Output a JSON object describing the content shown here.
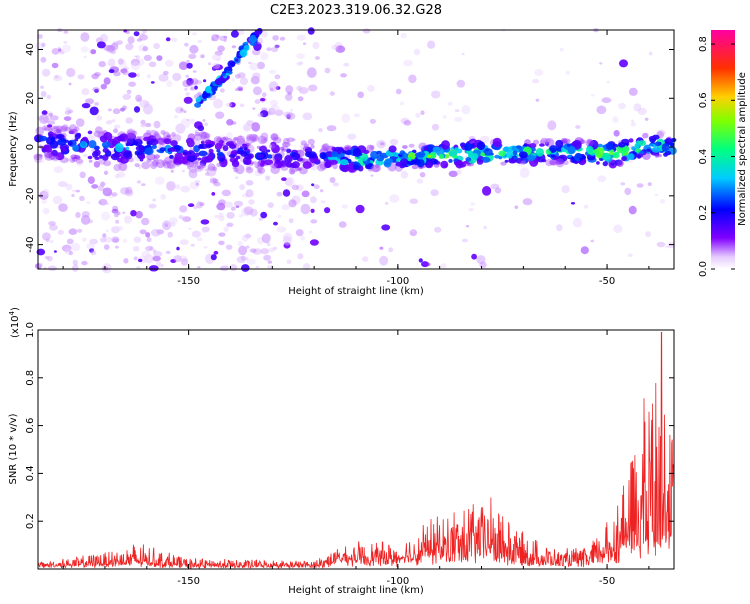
{
  "title": "C2E3.2023.319.06.32.G28",
  "chart_data": [
    {
      "type": "heatmap",
      "xlabel": "Height of straight line (km)",
      "ylabel": "Frequency (Hz)",
      "xlim": [
        -186,
        -34
      ],
      "ylim": [
        -50,
        48
      ],
      "x_ticks": [
        -150,
        -100,
        -50
      ],
      "x_tick_labels": [
        "-150",
        "-100",
        "-50"
      ],
      "y_ticks": [
        -40,
        -20,
        0,
        20,
        40
      ],
      "y_tick_labels": [
        "-40",
        "-20",
        "0",
        "20",
        "40"
      ],
      "colorbar": {
        "label": "Normalized spectral amplitude",
        "range": [
          0,
          0.85
        ],
        "ticks": [
          0,
          0.2,
          0.4,
          0.6,
          0.8
        ],
        "tick_labels": [
          "0.0",
          "0.2",
          "0.4",
          "0.6",
          "0.8"
        ],
        "colormap": "rainbow (white-purple-blue-cyan-green-yellow-red-magenta)"
      },
      "features": {
        "signal_band": [
          {
            "x": -186,
            "freq": 2,
            "amp": 0.3
          },
          {
            "x": -170,
            "freq": 0,
            "amp": 0.35
          },
          {
            "x": -155,
            "freq": -1,
            "amp": 0.3
          },
          {
            "x": -120,
            "freq": -4,
            "amp": 0.25
          },
          {
            "x": -110,
            "freq": -5,
            "amp": 0.55
          },
          {
            "x": -100,
            "freq": -4,
            "amp": 0.5
          },
          {
            "x": -85,
            "freq": -3,
            "amp": 0.65
          },
          {
            "x": -70,
            "freq": -2,
            "amp": 0.5
          },
          {
            "x": -55,
            "freq": -2,
            "amp": 0.55
          },
          {
            "x": -48,
            "freq": -3,
            "amp": 0.75
          },
          {
            "x": -40,
            "freq": 1,
            "amp": 0.5
          },
          {
            "x": -34,
            "freq": 0,
            "amp": 0.5
          }
        ],
        "diagonal_streak": [
          {
            "x": -148,
            "freq": 18
          },
          {
            "x": -142,
            "freq": 28
          },
          {
            "x": -136,
            "freq": 42
          },
          {
            "x": -132,
            "freq": 48
          }
        ]
      }
    },
    {
      "type": "line",
      "xlabel": "Height of straight line (km)",
      "ylabel": "SNR (10 * v/v)",
      "y_multiplier": "(x10",
      "y_multiplier_exp": "4",
      "xlim": [
        -186,
        -34
      ],
      "ylim": [
        0,
        1.0
      ],
      "x_ticks": [
        -150,
        -100,
        -50
      ],
      "x_tick_labels": [
        "-150",
        "-100",
        "-50"
      ],
      "y_ticks": [
        0.2,
        0.4,
        0.6,
        0.8,
        1.0
      ],
      "y_tick_labels": [
        "0.2",
        "0.4",
        "0.6",
        "0.8",
        "1.0"
      ],
      "series": [
        {
          "color": "#ee2222",
          "envelope": [
            {
              "x": -186,
              "base": 0.01,
              "amp": 0.02
            },
            {
              "x": -175,
              "base": 0.015,
              "amp": 0.04
            },
            {
              "x": -162,
              "base": 0.02,
              "amp": 0.09
            },
            {
              "x": -150,
              "base": 0.01,
              "amp": 0.035
            },
            {
              "x": -135,
              "base": 0.01,
              "amp": 0.03
            },
            {
              "x": -120,
              "base": 0.01,
              "amp": 0.025
            },
            {
              "x": -113,
              "base": 0.03,
              "amp": 0.08
            },
            {
              "x": -100,
              "base": 0.03,
              "amp": 0.08
            },
            {
              "x": -92,
              "base": 0.05,
              "amp": 0.16
            },
            {
              "x": -85,
              "base": 0.06,
              "amp": 0.2
            },
            {
              "x": -78,
              "base": 0.06,
              "amp": 0.25
            },
            {
              "x": -70,
              "base": 0.03,
              "amp": 0.12
            },
            {
              "x": -62,
              "base": 0.02,
              "amp": 0.06
            },
            {
              "x": -55,
              "base": 0.02,
              "amp": 0.07
            },
            {
              "x": -48,
              "base": 0.06,
              "amp": 0.2
            },
            {
              "x": -43,
              "base": 0.12,
              "amp": 0.45
            },
            {
              "x": -38,
              "base": 0.15,
              "amp": 0.8
            },
            {
              "x": -34,
              "base": 0.12,
              "amp": 0.45
            }
          ]
        }
      ]
    }
  ]
}
